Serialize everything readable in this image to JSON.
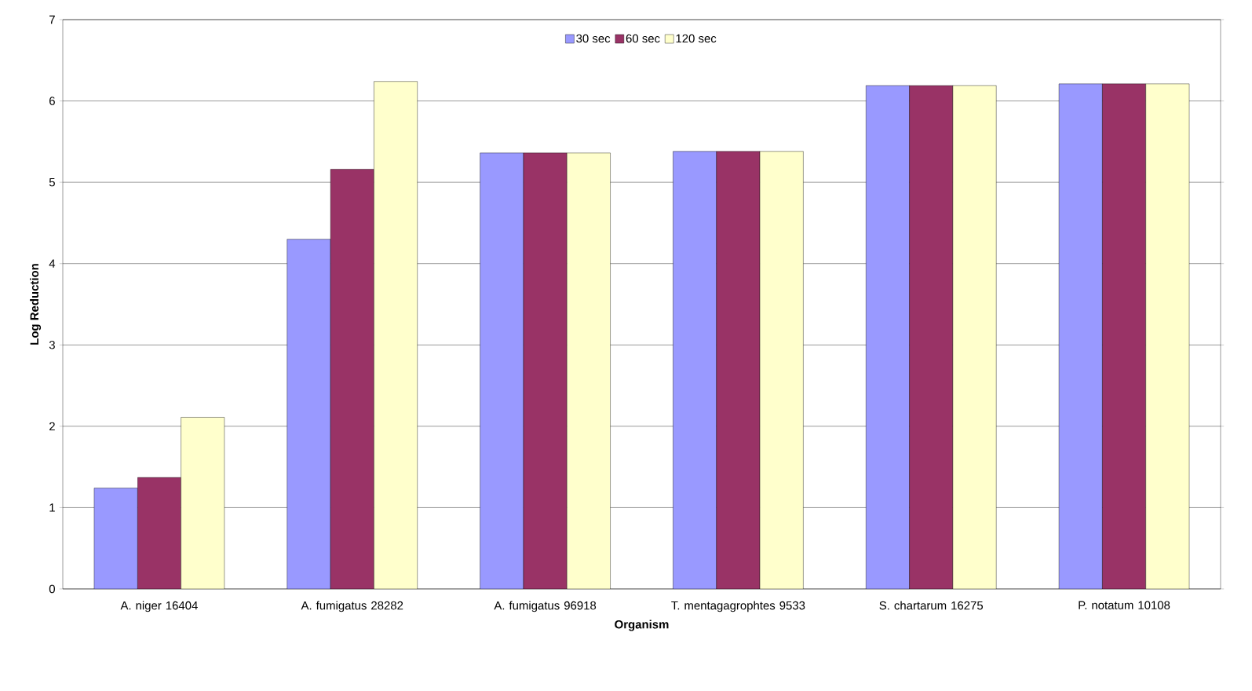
{
  "chart_data": {
    "type": "bar",
    "xlabel": "Organism",
    "ylabel": "Log Reduction",
    "categories": [
      "A. niger 16404",
      "A. fumigatus 28282",
      "A. fumigatus 96918",
      "T. mentagagrophtes 9533",
      "S. chartarum 16275",
      "P. notatum 10108"
    ],
    "series": [
      {
        "name": "30 sec",
        "color": "#9999ff",
        "values": [
          1.24,
          4.3,
          5.36,
          5.38,
          6.19,
          6.21
        ]
      },
      {
        "name": "60 sec",
        "color": "#993366",
        "values": [
          1.37,
          5.16,
          5.36,
          5.38,
          6.19,
          6.21
        ]
      },
      {
        "name": "120 sec",
        "color": "#ffffcc",
        "values": [
          2.11,
          6.24,
          5.36,
          5.38,
          6.19,
          6.21
        ]
      }
    ],
    "ylim": [
      0,
      7
    ],
    "yticks": [
      0,
      1,
      2,
      3,
      4,
      5,
      6,
      7
    ],
    "grid": "y",
    "legend": "top"
  }
}
